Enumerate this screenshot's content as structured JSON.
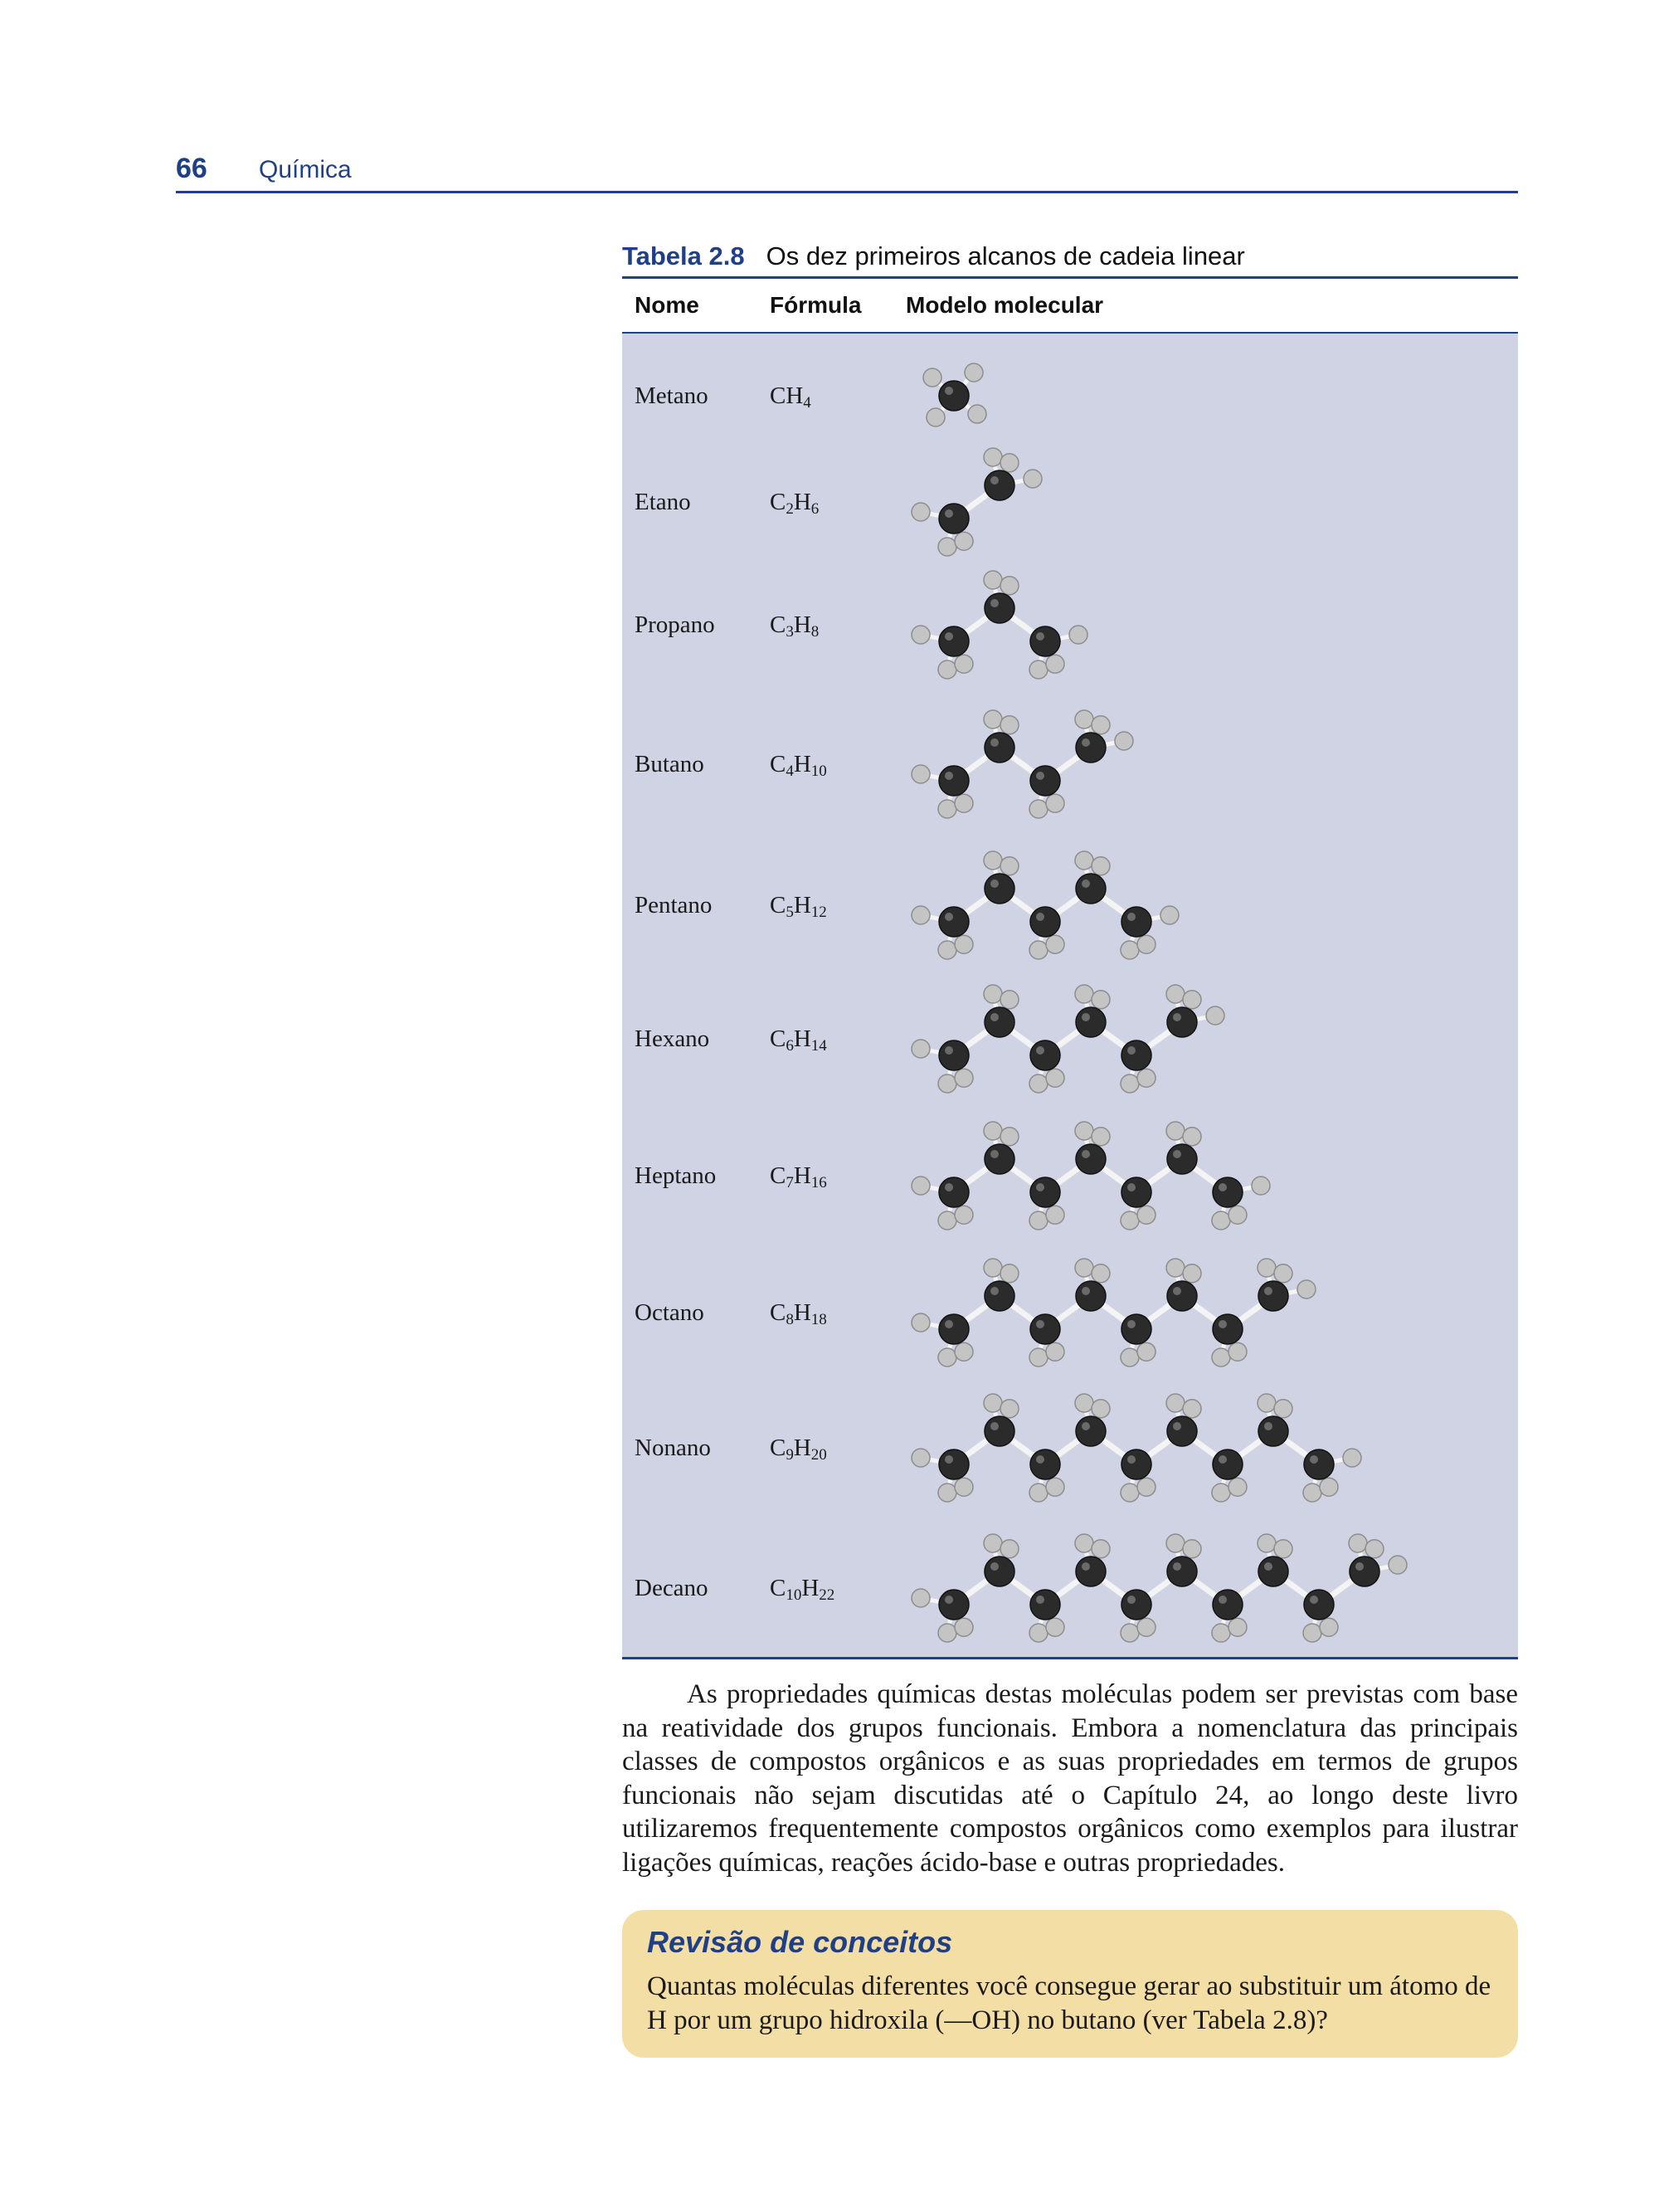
{
  "header": {
    "page_number": "66",
    "book_title": "Química"
  },
  "table": {
    "label": "Tabela 2.8",
    "caption": "Os dez primeiros alcanos de cadeia linear",
    "columns": {
      "name": "Nome",
      "formula": "Fórmula",
      "model": "Modelo molecular"
    },
    "rows": [
      {
        "name": "Metano",
        "formula": [
          [
            "C",
            ""
          ],
          [
            "H",
            "4"
          ]
        ],
        "carbons": 1
      },
      {
        "name": "Etano",
        "formula": [
          [
            "C",
            "2"
          ],
          [
            "H",
            "6"
          ]
        ],
        "carbons": 2
      },
      {
        "name": "Propano",
        "formula": [
          [
            "C",
            "3"
          ],
          [
            "H",
            "8"
          ]
        ],
        "carbons": 3
      },
      {
        "name": "Butano",
        "formula": [
          [
            "C",
            "4"
          ],
          [
            "H",
            "10"
          ]
        ],
        "carbons": 4
      },
      {
        "name": "Pentano",
        "formula": [
          [
            "C",
            "5"
          ],
          [
            "H",
            "12"
          ]
        ],
        "carbons": 5
      },
      {
        "name": "Hexano",
        "formula": [
          [
            "C",
            "6"
          ],
          [
            "H",
            "14"
          ]
        ],
        "carbons": 6
      },
      {
        "name": "Heptano",
        "formula": [
          [
            "C",
            "7"
          ],
          [
            "H",
            "16"
          ]
        ],
        "carbons": 7
      },
      {
        "name": "Octano",
        "formula": [
          [
            "C",
            "8"
          ],
          [
            "H",
            "18"
          ]
        ],
        "carbons": 8
      },
      {
        "name": "Nonano",
        "formula": [
          [
            "C",
            "9"
          ],
          [
            "H",
            "20"
          ]
        ],
        "carbons": 9
      },
      {
        "name": "Decano",
        "formula": [
          [
            "C",
            "10"
          ],
          [
            "H",
            "22"
          ]
        ],
        "carbons": 10
      }
    ]
  },
  "paragraph": "As propriedades químicas destas moléculas podem ser previstas com base na reatividade dos grupos funcionais. Embora a nomenclatura das principais classes de compostos orgânicos e as suas propriedades em termos de grupos funcionais não sejam discutidas até o Capítulo 24, ao longo deste livro utilizaremos frequentemente compostos orgânicos como exemplos para ilustrar ligações químicas, reações ácido-base e outras propriedades.",
  "review": {
    "title": "Revisão de conceitos",
    "text": "Quantas moléculas diferentes você consegue gerar ao substituir um átomo de H por um grupo hidroxila (—OH) no butano (ver Tabela 2.8)?"
  },
  "colors": {
    "accent_blue": "#1f3f87",
    "table_background": "#cfd3e3",
    "review_background": "#f3dfa6",
    "carbon_atom": "#2b2b2b",
    "hydrogen_atom": "#c4c4c4"
  }
}
